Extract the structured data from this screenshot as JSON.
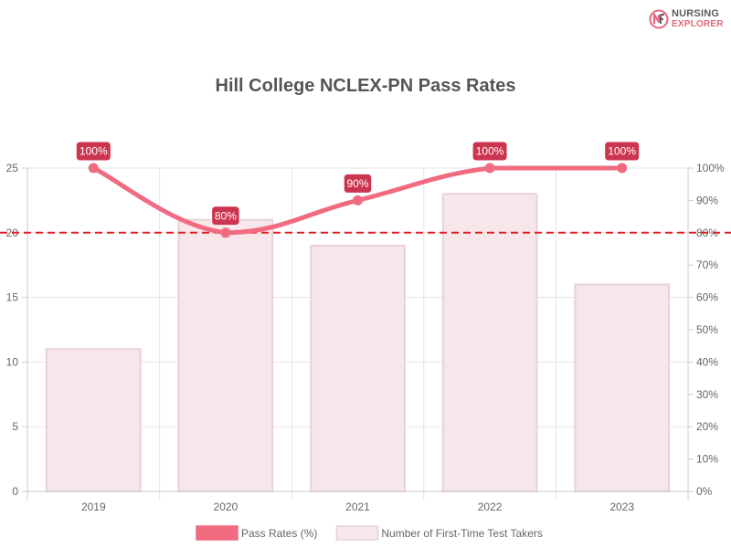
{
  "logo": {
    "line1": "NURSING",
    "line2": "EXPLORER",
    "icon": "nursing-explorer-logo-icon"
  },
  "chart_data": {
    "type": "bar",
    "title": "Hill College NCLEX-PN Pass Rates",
    "categories": [
      "2019",
      "2020",
      "2021",
      "2022",
      "2023"
    ],
    "series": [
      {
        "name": "Number of First-Time Test Takers",
        "type": "bar",
        "axis": "left",
        "values": [
          11,
          21,
          19,
          23,
          16
        ],
        "color": "#f7e6ea",
        "border_color": "#e7d2d8"
      },
      {
        "name": "Pass Rates (%)",
        "type": "line",
        "axis": "right",
        "values": [
          100,
          80,
          90,
          100,
          100
        ],
        "labels": [
          "100%",
          "80%",
          "90%",
          "100%",
          "100%"
        ],
        "color": "#f06b80"
      }
    ],
    "y_left": {
      "ylim": [
        0,
        25
      ],
      "ticks": [
        "0",
        "5",
        "10",
        "15",
        "20",
        "25"
      ]
    },
    "y_right": {
      "ylim": [
        0,
        100
      ],
      "ticks": [
        "0%",
        "10%",
        "20%",
        "30%",
        "40%",
        "50%",
        "60%",
        "70%",
        "80%",
        "90%",
        "100%"
      ]
    },
    "reference_line": {
      "value": 80,
      "axis": "right",
      "color": "#dd2222",
      "style": "dashed"
    },
    "label_bg_color": "#cc3550",
    "grid": true,
    "legend_position": "bottom"
  }
}
